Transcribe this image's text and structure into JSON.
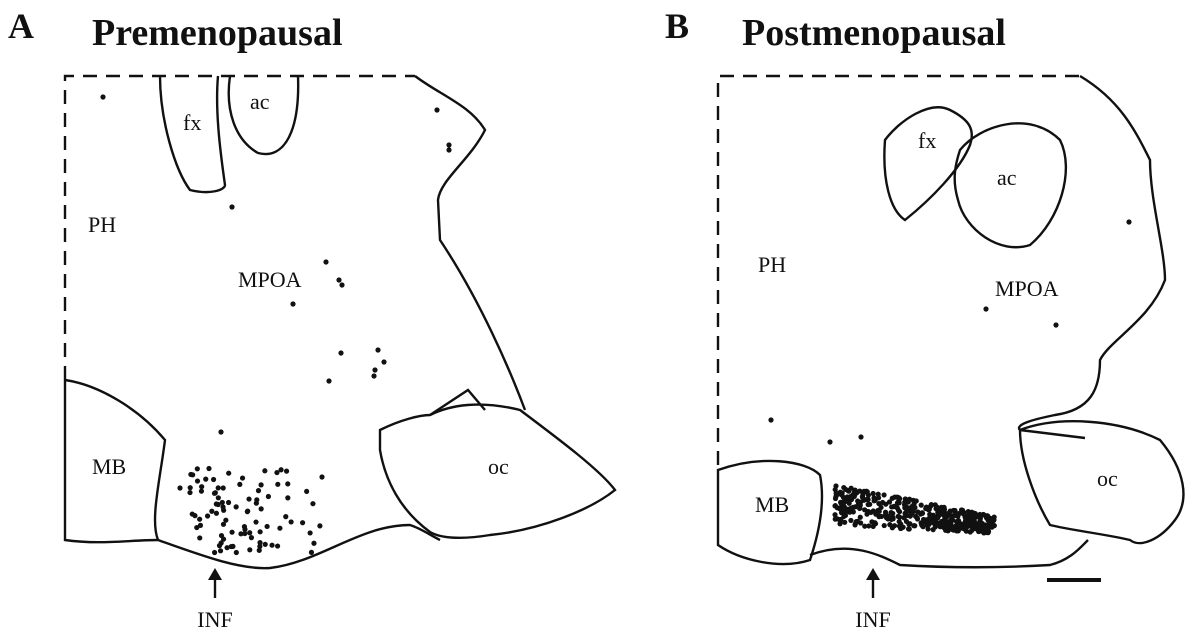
{
  "panels": [
    {
      "letter": "A",
      "title": "Premenopausal",
      "labels": {
        "fx": "fx",
        "ac": "ac",
        "ph": "PH",
        "mpoa": "MPOA",
        "mb": "MB",
        "oc": "oc",
        "inf": "INF"
      }
    },
    {
      "letter": "B",
      "title": "Postmenopausal",
      "labels": {
        "fx": "fx",
        "ac": "ac",
        "ph": "PH",
        "mpoa": "MPOA",
        "mb": "MB",
        "oc": "oc",
        "inf": "INF"
      }
    }
  ]
}
